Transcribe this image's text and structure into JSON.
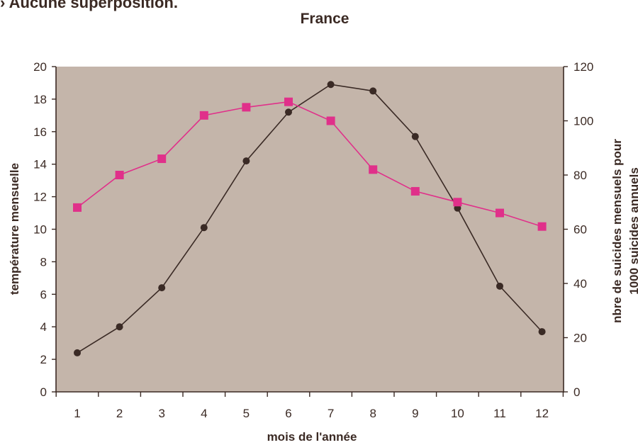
{
  "caption": "› Aucune superposition.",
  "chart_data": {
    "type": "line",
    "title": "France",
    "xlabel": "mois de l'année",
    "ylabel_left": "température mensuelle",
    "ylabel_right_lines": [
      "nbre de suicides mensuels pour",
      "1000 suicides annuels"
    ],
    "x": [
      1,
      2,
      3,
      4,
      5,
      6,
      7,
      8,
      9,
      10,
      11,
      12
    ],
    "x_tick_labels": [
      "1",
      "2",
      "3",
      "4",
      "5",
      "6",
      "7",
      "8",
      "9",
      "10",
      "11",
      "12"
    ],
    "ylim_left": [
      0,
      20
    ],
    "yticks_left": [
      "0",
      "2",
      "4",
      "6",
      "8",
      "10",
      "12",
      "14",
      "16",
      "18",
      "20"
    ],
    "ylim_right": [
      0,
      120
    ],
    "yticks_right": [
      "0",
      "20",
      "40",
      "60",
      "80",
      "100",
      "120"
    ],
    "series": [
      {
        "axis": "left",
        "marker": "circle",
        "color": "#3a2a25",
        "values": [
          2.4,
          4.0,
          6.4,
          10.1,
          14.2,
          17.2,
          18.9,
          18.5,
          15.7,
          11.3,
          6.5,
          3.7
        ]
      },
      {
        "axis": "right",
        "marker": "square",
        "color": "#e0308a",
        "values": [
          68,
          80,
          86,
          102,
          105,
          107,
          100,
          82,
          74,
          70,
          66,
          61
        ]
      }
    ],
    "plot_background": "#c4b5aa",
    "grid": false,
    "legend": "none"
  }
}
